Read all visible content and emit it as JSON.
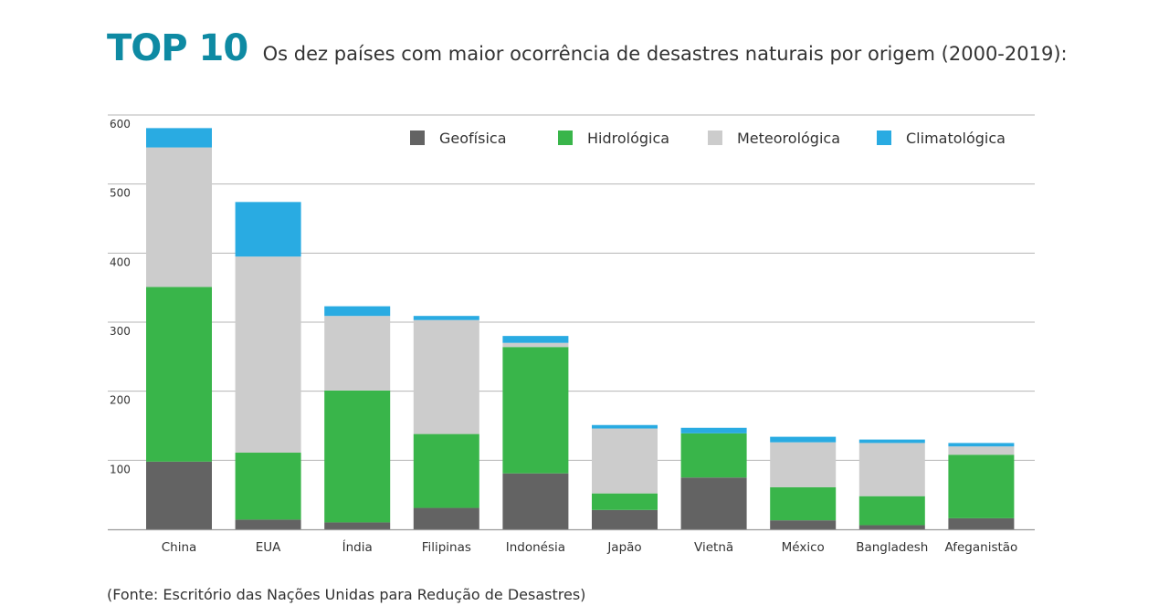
{
  "header": {
    "title": "TOP 10",
    "subtitle": "Os dez países com maior ocorrência de desastres naturais por origem (2000-2019):"
  },
  "source": "(Fonte: Escritório das Nações Unidas para Redução de Desastres)",
  "chart_data": {
    "type": "bar",
    "stacked": true,
    "title": "Os dez países com maior ocorrência de desastres naturais por origem (2000-2019):",
    "xlabel": "",
    "ylabel": "",
    "ylim": [
      0,
      600
    ],
    "yticks": [
      100,
      200,
      300,
      400,
      500,
      600
    ],
    "grid": true,
    "legend_position": "top-right",
    "categories": [
      "China",
      "EUA",
      "Índia",
      "Filipinas",
      "Indonésia",
      "Japão",
      "Vietnã",
      "México",
      "Bangladesh",
      "Afeganistão"
    ],
    "series": [
      {
        "name": "Geofísica",
        "color": "#636363",
        "values": [
          98,
          14,
          10,
          31,
          81,
          28,
          75,
          13,
          6,
          16
        ]
      },
      {
        "name": "Hidrológica",
        "color": "#39b54a",
        "values": [
          253,
          97,
          191,
          107,
          183,
          24,
          64,
          48,
          42,
          92
        ]
      },
      {
        "name": "Meteorológica",
        "color": "#cccccc",
        "values": [
          202,
          284,
          108,
          165,
          6,
          94,
          0,
          65,
          77,
          12
        ]
      },
      {
        "name": "Climatológica",
        "color": "#29abe2",
        "values": [
          28,
          79,
          14,
          6,
          10,
          5,
          8,
          8,
          5,
          5
        ]
      }
    ]
  }
}
